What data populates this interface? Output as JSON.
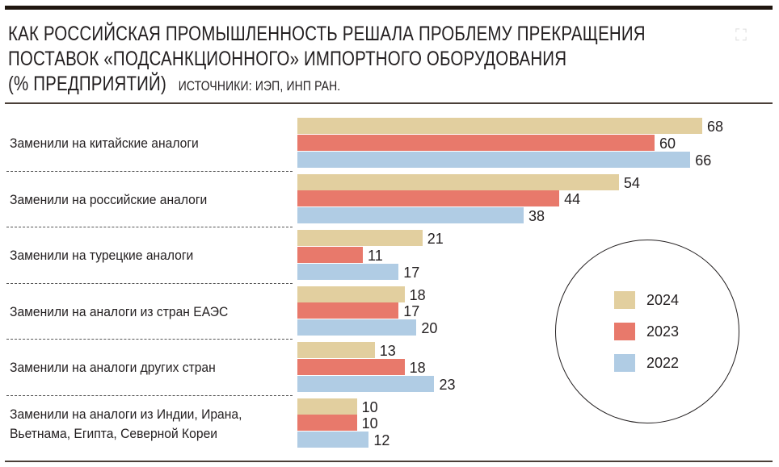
{
  "header": {
    "title_line1": "КАК РОССИЙСКАЯ ПРОМЫШЛЕННОСТЬ РЕШАЛА ПРОБЛЕМУ ПРЕКРАЩЕНИЯ",
    "title_line2": "ПОСТАВОК «ПОДСАНКЦИОННОГО» ИМПОРТНОГО ОБОРУДОВАНИЯ",
    "title_line3": "(% ПРЕДПРИЯТИЙ)",
    "source": "ИСТОЧНИКИ: ИЭП, ИНП РАН."
  },
  "chart_data": {
    "type": "bar",
    "orientation": "horizontal",
    "title": "КАК РОССИЙСКАЯ ПРОМЫШЛЕННОСТЬ РЕШАЛА ПРОБЛЕМУ ПРЕКРАЩЕНИЯ ПОСТАВОК «ПОДСАНКЦИОННОГО» ИМПОРТНОГО ОБОРУДОВАНИЯ (% ПРЕДПРИЯТИЙ)",
    "xlabel": "",
    "ylabel": "",
    "xlim": [
      0,
      68
    ],
    "grid": false,
    "legend_position": "right",
    "categories": [
      "Заменили на китайские аналоги",
      "Заменили на российские аналоги",
      "Заменили на турецкие аналоги",
      "Заменили на аналоги из стран ЕАЭС",
      "Заменили на аналоги других стран",
      "Заменили на аналоги из Индии, Ирана,\nВьетнама, Египта, Северной Кореи"
    ],
    "series": [
      {
        "name": "2024",
        "color": "#e2cf9f",
        "values": [
          68,
          54,
          21,
          18,
          13,
          10
        ]
      },
      {
        "name": "2023",
        "color": "#e8796b",
        "values": [
          60,
          44,
          11,
          17,
          18,
          10
        ]
      },
      {
        "name": "2022",
        "color": "#b0cce4",
        "values": [
          66,
          38,
          17,
          20,
          23,
          12
        ]
      }
    ]
  }
}
